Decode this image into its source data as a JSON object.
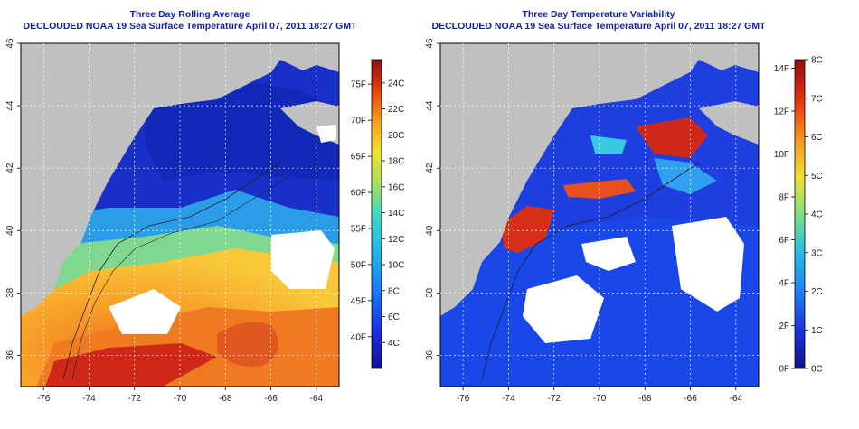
{
  "left_panel": {
    "title": "Three Day Rolling Average",
    "subtitle": "DECLOUDED NOAA 19 Sea Surface Temperature April 07, 2011 18:27 GMT",
    "lon_ticks": [
      "-76",
      "-74",
      "-72",
      "-70",
      "-68",
      "-66",
      "-64"
    ],
    "lat_ticks": [
      "36",
      "38",
      "40",
      "42",
      "44",
      "46"
    ],
    "colorbar": {
      "f_labels": [
        "40F",
        "45F",
        "50F",
        "55F",
        "60F",
        "65F",
        "70F",
        "75F"
      ],
      "c_labels": [
        "4C",
        "6C",
        "8C",
        "10C",
        "12C",
        "14C",
        "16C",
        "18C",
        "20C",
        "22C",
        "24C"
      ],
      "f_range": [
        35.6,
        78.4
      ],
      "c_range": [
        2,
        25.8
      ]
    }
  },
  "right_panel": {
    "title": "Three Day Temperature Variability",
    "subtitle": "DECLOUDED NOAA 19 Sea Surface Temperature April 07, 2011 18:27 GMT",
    "lon_ticks": [
      "-76",
      "-74",
      "-72",
      "-70",
      "-68",
      "-66",
      "-64"
    ],
    "lat_ticks": [
      "36",
      "38",
      "40",
      "42",
      "44",
      "46"
    ],
    "colorbar": {
      "f_labels": [
        "0F",
        "2F",
        "4F",
        "6F",
        "8F",
        "10F",
        "12F",
        "14F"
      ],
      "c_labels": [
        "0C",
        "1C",
        "2C",
        "3C",
        "4C",
        "5C",
        "6C",
        "7C",
        "8C"
      ],
      "f_range": [
        0,
        14.4
      ],
      "c_range": [
        0,
        8
      ]
    }
  },
  "map_extent": {
    "lon_min": -77,
    "lon_max": -63,
    "lat_min": 35,
    "lat_max": 46
  },
  "colors": {
    "title": "#0f1fa8",
    "land": "#c0c0c0",
    "cloud": "#ffffff",
    "grid": "#ffffff"
  }
}
